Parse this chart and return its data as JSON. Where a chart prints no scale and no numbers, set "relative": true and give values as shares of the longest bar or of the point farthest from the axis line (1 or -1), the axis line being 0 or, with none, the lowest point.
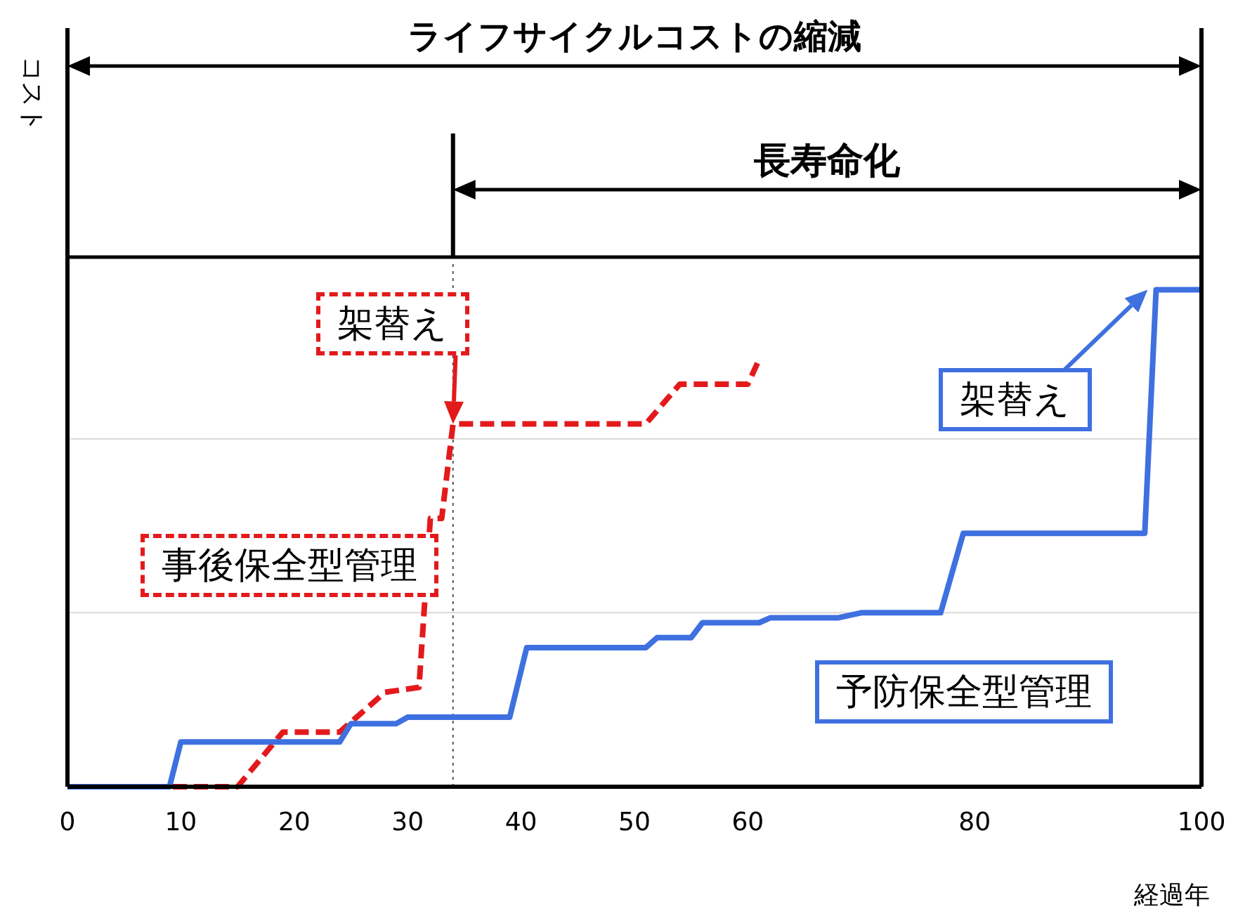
{
  "chart_data": {
    "type": "line",
    "title": "ライフサイクルコストの縮減",
    "xlabel": "経過年",
    "relative": true,
    "marker": "none",
    "xlim": [
      0,
      100
    ],
    "xticks": [
      0,
      10,
      20,
      30,
      40,
      50,
      60,
      80,
      100
    ],
    "annotations": [
      "長寿命化",
      "コスト",
      {
        "text": "架替え",
        "x": 34,
        "y": 0.73
      },
      "架替え"
    ],
    "ref_lines": [
      {
        "axis": "x",
        "value": 34,
        "color": "#555555",
        "line_style": "dotted"
      },
      {
        "axis": "y",
        "value": 0.35,
        "color": "#d9d9d9",
        "line_style": "solid"
      },
      {
        "axis": "y",
        "value": 0.7,
        "color": "#d9d9d9",
        "line_style": "solid"
      }
    ],
    "series": [
      {
        "name": "事後保全型管理",
        "color": "#e31a1c",
        "line_style": "dashed",
        "x": [
          0,
          15,
          19,
          24,
          25,
          28,
          31,
          32,
          33,
          34,
          51,
          54,
          60,
          61
        ],
        "values": [
          0,
          0,
          0.11,
          0.11,
          0.13,
          0.19,
          0.2,
          0.54,
          0.54,
          0.73,
          0.73,
          0.81,
          0.81,
          0.86
        ]
      },
      {
        "name": "予防保全型管理",
        "color": "#3e70e0",
        "line_style": "solid",
        "x": [
          0,
          9,
          10,
          24,
          25,
          29,
          30,
          39,
          40.5,
          51,
          52,
          55,
          56,
          61,
          62,
          68,
          70,
          77,
          79,
          95,
          96,
          100
        ],
        "values": [
          0,
          0,
          0.09,
          0.09,
          0.127,
          0.127,
          0.14,
          0.14,
          0.28,
          0.28,
          0.3,
          0.3,
          0.33,
          0.33,
          0.34,
          0.34,
          0.35,
          0.35,
          0.51,
          0.51,
          1,
          1
        ]
      }
    ]
  }
}
